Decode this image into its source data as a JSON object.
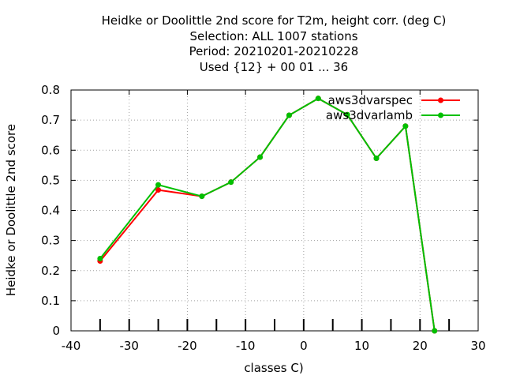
{
  "chart_data": {
    "type": "line",
    "title_lines": [
      "Heidke or Doolittle 2nd score  for T2m, height corr. (deg C)",
      "Selection: ALL   1007 stations",
      "Period: 20210201-20210228",
      "Used {12} + 00 01 ... 36"
    ],
    "xlabel": "classes C)",
    "ylabel": "Heidke or Doolittle 2nd score",
    "xlim": [
      -40,
      30
    ],
    "ylim": [
      0,
      0.8
    ],
    "xticks": [
      "-40",
      "-30",
      "-20",
      "-10",
      "0",
      "10",
      "20",
      "30"
    ],
    "yticks": [
      "0",
      "0.1",
      "0.2",
      "0.3",
      "0.4",
      "0.5",
      "0.6",
      "0.7",
      "0.8"
    ],
    "grid": true,
    "legend_position": "top-right",
    "class_ticks": [
      -35,
      -30,
      -25,
      -20,
      -15,
      -10,
      -5,
      0,
      5,
      10,
      15,
      20,
      25
    ],
    "series": [
      {
        "name": "aws3dvarspec",
        "color": "#ff0000",
        "x": [
          -35,
          -25,
          -17.5,
          -12.5,
          -7.5,
          -2.5,
          2.5,
          7.5,
          12.5,
          17.5,
          22.5
        ],
        "y": [
          0.232,
          0.468,
          0.447,
          0.494,
          0.577,
          0.716,
          0.772,
          0.718,
          0.573,
          0.68,
          0.0
        ]
      },
      {
        "name": "aws3dvarlamb",
        "color": "#00c000",
        "x": [
          -35,
          -25,
          -17.5,
          -12.5,
          -7.5,
          -2.5,
          2.5,
          7.5,
          12.5,
          17.5,
          22.5
        ],
        "y": [
          0.24,
          0.485,
          0.447,
          0.494,
          0.577,
          0.716,
          0.772,
          0.718,
          0.573,
          0.68,
          0.0
        ]
      }
    ]
  }
}
